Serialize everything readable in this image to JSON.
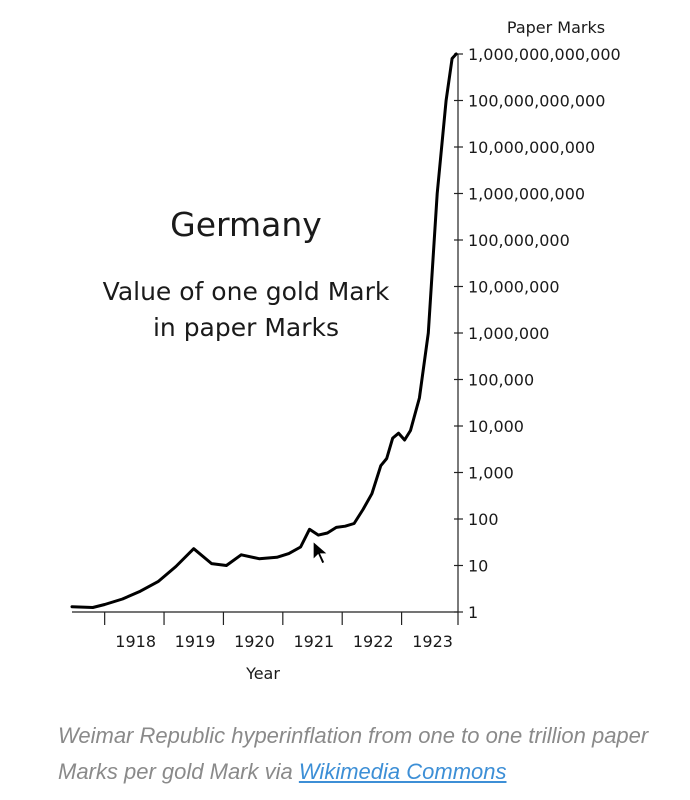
{
  "chart_data": {
    "type": "line",
    "title": "Germany",
    "subtitle_lines": [
      "Value of one gold Mark",
      "in paper Marks"
    ],
    "xlabel": "Year",
    "ylabel": "Paper Marks",
    "y_scale": "log",
    "xlim": [
      1917.45,
      1923.95
    ],
    "ylim": [
      1,
      1000000000000
    ],
    "x_ticks": [
      1918,
      1919,
      1920,
      1921,
      1922,
      1923
    ],
    "x_tick_labels": [
      "1918",
      "1919",
      "1920",
      "1921",
      "1922",
      "1923"
    ],
    "y_ticks": [
      1,
      10,
      100,
      1000,
      10000,
      100000,
      1000000,
      10000000,
      100000000,
      1000000000,
      10000000000,
      100000000000,
      1000000000000
    ],
    "y_tick_labels": [
      "1",
      "10",
      "100",
      "1,000",
      "10,000",
      "100,000",
      "1,000,000",
      "10,000,000",
      "100,000,000",
      "1,000,000,000",
      "10,000,000,000",
      "100,000,000,000",
      "1,000,000,000,000"
    ],
    "grid": false,
    "legend": false,
    "series": [
      {
        "color": "#000000",
        "x": [
          1917.45,
          1917.8,
          1918.0,
          1918.3,
          1918.6,
          1918.9,
          1919.2,
          1919.5,
          1919.8,
          1920.05,
          1920.3,
          1920.6,
          1920.9,
          1921.1,
          1921.3,
          1921.45,
          1921.6,
          1921.75,
          1921.9,
          1922.05,
          1922.2,
          1922.35,
          1922.5,
          1922.65,
          1922.75,
          1922.85,
          1922.95,
          1923.05,
          1923.15,
          1923.3,
          1923.45,
          1923.6,
          1923.75,
          1923.85,
          1923.92
        ],
        "y": [
          1.3,
          1.25,
          1.45,
          1.9,
          2.8,
          4.5,
          9.5,
          23,
          11,
          10,
          17,
          14,
          15,
          18,
          25,
          60,
          45,
          50,
          66,
          70,
          80,
          160,
          350,
          1400,
          2000,
          5500,
          7000,
          5000,
          8000,
          40000,
          1000000,
          1000000000,
          100000000000,
          800000000000,
          1000000000000
        ]
      }
    ]
  },
  "caption": {
    "text": "Weimar Republic hyperinflation from one to one trillion paper Marks per gold Mark via ",
    "link": "Wikimedia Commons"
  }
}
